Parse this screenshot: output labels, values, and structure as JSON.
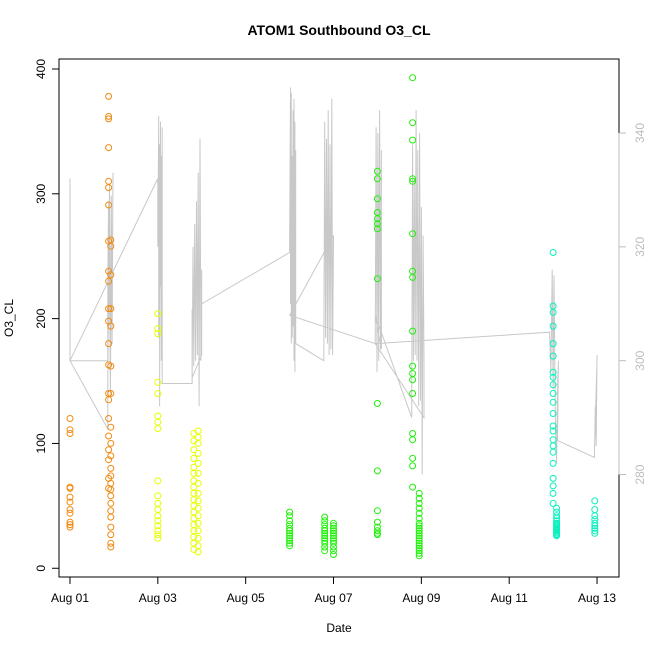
{
  "chart_data": {
    "type": "scatter",
    "title": "ATOM1 Southbound O3_CL",
    "xlabel": "Date",
    "ylabel": "O3_CL",
    "x_ticks": [
      "Aug 01",
      "Aug 03",
      "Aug 05",
      "Aug 07",
      "Aug 09",
      "Aug 11",
      "Aug 13"
    ],
    "xlim": [
      "Jul 31 18:00",
      "Aug 13 12:00"
    ],
    "y_ticks": [
      0,
      100,
      200,
      300,
      400
    ],
    "ylim": [
      -7,
      408
    ],
    "y2_ticks": [
      280,
      300,
      320,
      340
    ],
    "y2lim": [
      262,
      353
    ],
    "grid": false,
    "legend": "none",
    "colors": {
      "line": "#c8c8c8",
      "points_palette": [
        "#f08c14",
        "#e6ff00",
        "#21f00b",
        "#0af0be"
      ]
    },
    "series": [
      {
        "type": "points",
        "color": "#f08c14",
        "day_ranges": [
          [
            0.0,
            0.02
          ],
          [
            0.8,
            1.0
          ]
        ],
        "x": [
          0.0,
          0.0,
          0.0,
          0.0,
          0.0,
          0.0,
          0.0,
          0.0,
          0.0,
          0.0,
          0.0,
          0.0,
          0.88,
          0.88,
          0.88,
          0.88,
          0.88,
          0.88,
          0.88,
          0.88,
          0.88,
          0.88,
          0.88,
          0.88,
          0.88,
          0.88,
          0.88,
          0.88,
          0.88,
          0.88,
          0.88,
          0.88,
          0.88,
          0.88,
          0.93,
          0.93,
          0.93,
          0.93,
          0.93,
          0.93,
          0.93,
          0.93,
          0.93,
          0.93,
          0.93,
          0.93,
          0.93,
          0.93,
          0.93,
          0.93,
          0.93,
          0.93,
          0.93,
          0.93,
          0.93,
          0.93
        ],
        "y": [
          120,
          111,
          108,
          65,
          64,
          57,
          53,
          47,
          44,
          37,
          35,
          33,
          378,
          362,
          360,
          337,
          310,
          305,
          291,
          262,
          238,
          230,
          208,
          198,
          180,
          163,
          140,
          135,
          120,
          106,
          95,
          87,
          72,
          64,
          263,
          258,
          235,
          208,
          194,
          162,
          140,
          113,
          100,
          90,
          80,
          74,
          68,
          63,
          58,
          52,
          46,
          41,
          33,
          27,
          20,
          17
        ]
      },
      {
        "type": "points",
        "color": "#e6ff00",
        "day_ranges": [
          [
            2.0,
            2.05
          ],
          [
            2.8,
            3.0
          ]
        ],
        "x": [
          2.0,
          2.0,
          2.0,
          2.0,
          2.0,
          2.0,
          2.0,
          2.0,
          2.0,
          2.0,
          2.0,
          2.0,
          2.0,
          2.0,
          2.0,
          2.0,
          2.0,
          2.0,
          2.82,
          2.82,
          2.82,
          2.82,
          2.82,
          2.82,
          2.82,
          2.82,
          2.82,
          2.82,
          2.82,
          2.82,
          2.82,
          2.82,
          2.82,
          2.82,
          2.82,
          2.82,
          2.92,
          2.92,
          2.92,
          2.92,
          2.92,
          2.92,
          2.92,
          2.92,
          2.92,
          2.92,
          2.92,
          2.92,
          2.92,
          2.92,
          2.92,
          2.92
        ],
        "y": [
          204,
          192,
          188,
          149,
          140,
          122,
          117,
          112,
          70,
          58,
          52,
          47,
          42,
          38,
          34,
          30,
          27,
          24,
          108,
          102,
          95,
          88,
          81,
          76,
          70,
          65,
          60,
          55,
          50,
          45,
          40,
          35,
          30,
          25,
          20,
          15,
          110,
          105,
          100,
          92,
          84,
          76,
          68,
          60,
          54,
          48,
          42,
          36,
          30,
          24,
          18,
          13
        ]
      },
      {
        "type": "points",
        "color": "#21f00b",
        "day_ranges": [
          [
            5.0,
            5.05
          ],
          [
            5.7,
            6.1
          ],
          [
            7.0,
            7.05
          ],
          [
            7.75,
            8.05
          ]
        ],
        "x": [
          5.0,
          5.0,
          5.0,
          5.0,
          5.0,
          5.0,
          5.0,
          5.0,
          5.0,
          5.0,
          5.0,
          5.0,
          5.8,
          5.8,
          5.8,
          5.8,
          5.8,
          5.8,
          5.8,
          5.8,
          5.8,
          5.8,
          5.8,
          5.8,
          6.0,
          6.0,
          6.0,
          6.0,
          6.0,
          6.0,
          6.0,
          6.0,
          6.0,
          6.0,
          6.0,
          6.0,
          7.0,
          7.0,
          7.0,
          7.0,
          7.0,
          7.0,
          7.0,
          7.0,
          7.0,
          7.0,
          7.0,
          7.0,
          7.0,
          7.0,
          7.0,
          7.0,
          7.8,
          7.8,
          7.8,
          7.8,
          7.8,
          7.8,
          7.8,
          7.8,
          7.8,
          7.8,
          7.8,
          7.8,
          7.8,
          7.8,
          7.8,
          7.8,
          7.8,
          7.8,
          7.95,
          7.95,
          7.95,
          7.95,
          7.95,
          7.95,
          7.95,
          7.95,
          7.95,
          7.95,
          7.95,
          7.95,
          7.95,
          7.95,
          7.95,
          7.95,
          7.95,
          7.95,
          7.95,
          7.95
        ],
        "y": [
          45,
          42,
          38,
          35,
          32,
          30,
          28,
          26,
          24,
          22,
          20,
          18,
          41,
          38,
          35,
          32,
          30,
          28,
          26,
          24,
          22,
          20,
          17,
          14,
          36,
          34,
          32,
          30,
          28,
          26,
          24,
          22,
          20,
          17,
          14,
          11,
          318,
          312,
          296,
          285,
          280,
          276,
          272,
          232,
          132,
          78,
          46,
          37,
          33,
          30,
          28,
          27,
          393,
          357,
          343,
          312,
          310,
          268,
          238,
          233,
          190,
          162,
          156,
          151,
          140,
          108,
          103,
          88,
          82,
          65,
          60,
          56,
          52,
          48,
          44,
          40,
          36,
          34,
          32,
          30,
          28,
          26,
          24,
          22,
          20,
          18,
          16,
          14,
          12,
          10
        ]
      },
      {
        "type": "points",
        "color": "#0af0be",
        "day_ranges": [
          [
            10.75,
            11.2
          ],
          [
            11.9,
            12.0
          ]
        ],
        "x": [
          11.0,
          11.0,
          11.0,
          11.0,
          11.0,
          11.0,
          11.0,
          11.0,
          11.0,
          11.0,
          11.0,
          11.0,
          11.0,
          11.0,
          11.0,
          11.0,
          11.0,
          11.0,
          11.0,
          11.0,
          11.0,
          11.0,
          11.08,
          11.08,
          11.08,
          11.08,
          11.08,
          11.08,
          11.08,
          11.08,
          11.08,
          11.08,
          11.08,
          11.08,
          11.08,
          11.08,
          11.08,
          11.08,
          11.95,
          11.95,
          11.95,
          11.95,
          11.95,
          11.95,
          11.95,
          11.95,
          11.95
        ],
        "y": [
          253,
          210,
          205,
          194,
          180,
          170,
          157,
          153,
          147,
          140,
          133,
          124,
          114,
          110,
          103,
          98,
          93,
          84,
          72,
          66,
          60,
          52,
          48,
          45,
          42,
          40,
          38,
          36,
          35,
          34,
          33,
          32,
          31,
          30,
          29,
          28,
          27,
          26,
          54,
          47,
          42,
          39,
          36,
          34,
          32,
          30,
          28
        ]
      },
      {
        "type": "line",
        "axis": "right",
        "color": "#c8c8c8",
        "x": [
          0.0,
          0.0,
          0.0,
          0.0,
          0.86,
          0.86,
          0.88,
          0.88,
          0.9,
          0.92,
          0.94,
          0.96,
          0.98,
          0.96,
          0.94,
          0.92,
          0.9,
          0.88,
          0.86,
          0.86,
          0.0,
          2.0,
          2.0,
          2.02,
          2.02,
          2.04,
          2.04,
          2.06,
          2.06,
          2.08,
          2.08,
          2.1,
          2.1,
          2.78,
          2.8,
          2.82,
          2.84,
          2.86,
          2.88,
          2.9,
          2.92,
          2.94,
          2.96,
          2.98,
          3.0,
          3.0,
          2.78,
          2.78,
          5.0,
          5.0,
          5.02,
          5.02,
          5.04,
          5.04,
          5.06,
          5.06,
          5.08,
          5.08,
          5.1,
          5.1,
          5.12,
          5.12,
          5.14,
          5.14,
          5.78,
          5.8,
          5.82,
          5.84,
          5.86,
          5.88,
          5.9,
          5.92,
          5.94,
          5.96,
          5.98,
          6.0,
          5.0,
          6.95,
          6.97,
          6.99,
          7.01,
          7.03,
          7.05,
          7.07,
          7.09,
          7.09,
          6.95,
          7.78,
          7.8,
          7.82,
          7.84,
          7.86,
          7.88,
          7.9,
          7.92,
          7.94,
          7.96,
          7.98,
          8.0,
          8.02,
          8.04,
          8.06,
          8.06,
          6.95,
          10.92,
          10.95,
          10.98,
          11.0,
          11.02,
          11.05,
          11.08,
          11.1,
          11.12,
          11.1,
          11.94,
          11.96,
          11.98,
          12.0,
          12.0,
          11.94
        ],
        "y": [
          332,
          318,
          329,
          300,
          300,
          315,
          328,
          306,
          331,
          298,
          329,
          303,
          333,
          310,
          322,
          294,
          317,
          312,
          297,
          288,
          300,
          332,
          320,
          343,
          304,
          338,
          292,
          342,
          313,
          336,
          300,
          341,
          296,
          296,
          320,
          299,
          324,
          300,
          328,
          301,
          333,
          292,
          339,
          300,
          316,
          301,
          297,
          309,
          319,
          319,
          348,
          310,
          347,
          303,
          336,
          304,
          344,
          306,
          346,
          300,
          342,
          298,
          337,
          303,
          300,
          342,
          304,
          339,
          303,
          344,
          301,
          338,
          302,
          346,
          301,
          322,
          308,
          303,
          341,
          298,
          340,
          300,
          344,
          302,
          337,
          302,
          308,
          290,
          338,
          300,
          332,
          301,
          344,
          300,
          337,
          292,
          340,
          293,
          327,
          280,
          322,
          300,
          290,
          303,
          305,
          298,
          316,
          295,
          315,
          290,
          282,
          295,
          300,
          286,
          283,
          292,
          285,
          301,
          300,
          284
        ]
      }
    ]
  }
}
